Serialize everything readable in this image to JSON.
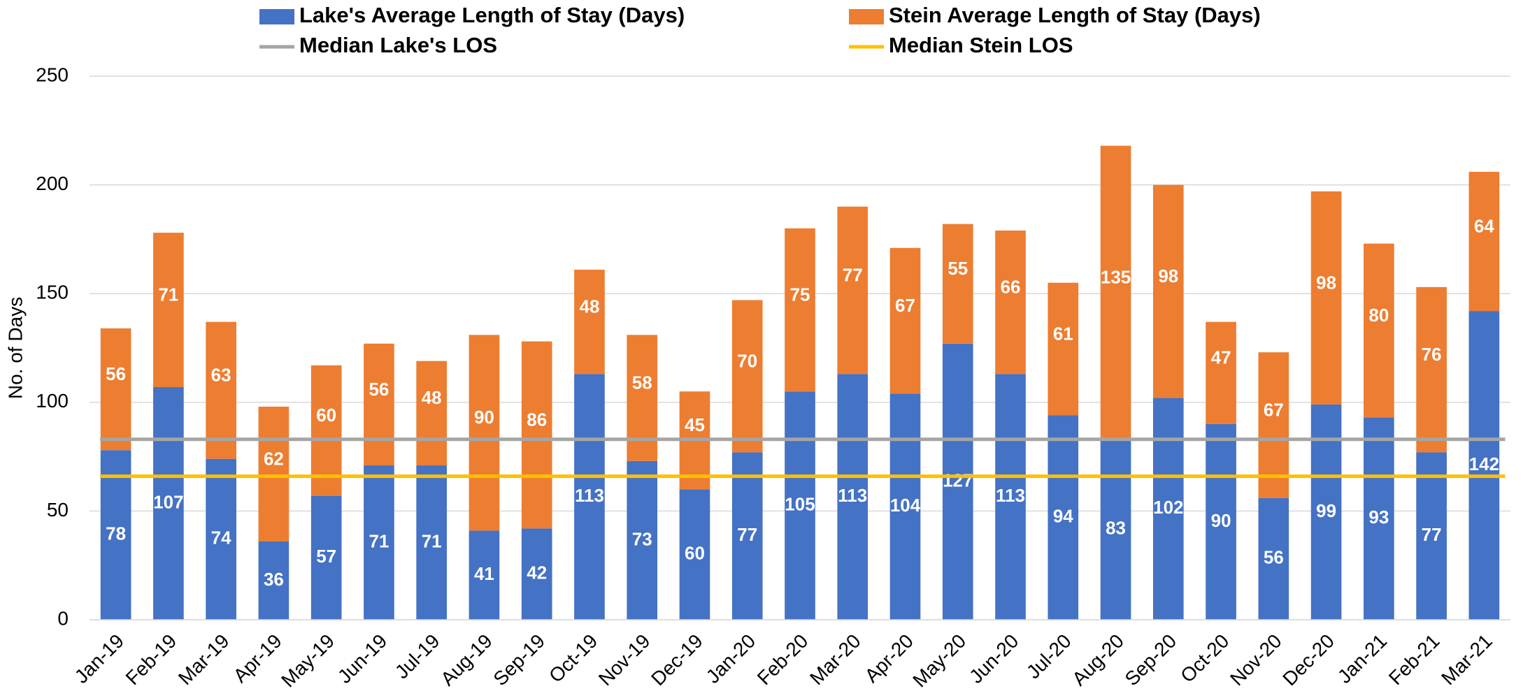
{
  "chart_data": {
    "type": "stacked_bar",
    "y_label": "No. of Days",
    "categories": [
      "Jan-19",
      "Feb-19",
      "Mar-19",
      "Apr-19",
      "May-19",
      "Jun-19",
      "Jul-19",
      "Aug-19",
      "Sep-19",
      "Oct-19",
      "Nov-19",
      "Dec-19",
      "Jan-20",
      "Feb-20",
      "Mar-20",
      "Apr-20",
      "May-20",
      "Jun-20",
      "Jul-20",
      "Aug-20",
      "Sep-20",
      "Oct-20",
      "Nov-20",
      "Dec-20",
      "Jan-21",
      "Feb-21",
      "Mar-21"
    ],
    "series": [
      {
        "name": "Lake's Average Length of Stay (Days)",
        "color": "#4472c4",
        "values": [
          78,
          107,
          74,
          36,
          57,
          71,
          71,
          41,
          42,
          113,
          73,
          60,
          77,
          105,
          113,
          104,
          127,
          113,
          94,
          83,
          102,
          90,
          56,
          99,
          93,
          77,
          142
        ]
      },
      {
        "name": "Stein Average Length of Stay (Days)",
        "color": "#ed7d31",
        "values": [
          56,
          71,
          63,
          62,
          60,
          56,
          48,
          90,
          86,
          48,
          58,
          45,
          70,
          75,
          77,
          67,
          55,
          66,
          61,
          135,
          98,
          47,
          67,
          98,
          80,
          76,
          64
        ]
      }
    ],
    "reference_lines": [
      {
        "name": "Median Lake's LOS",
        "color": "#a5a5a5",
        "value": 83
      },
      {
        "name": "Median Stein LOS",
        "color": "#ffc000",
        "value": 66
      }
    ],
    "ylim": [
      0,
      250
    ],
    "yticks": [
      0,
      50,
      100,
      150,
      200,
      250
    ],
    "grid": true
  }
}
